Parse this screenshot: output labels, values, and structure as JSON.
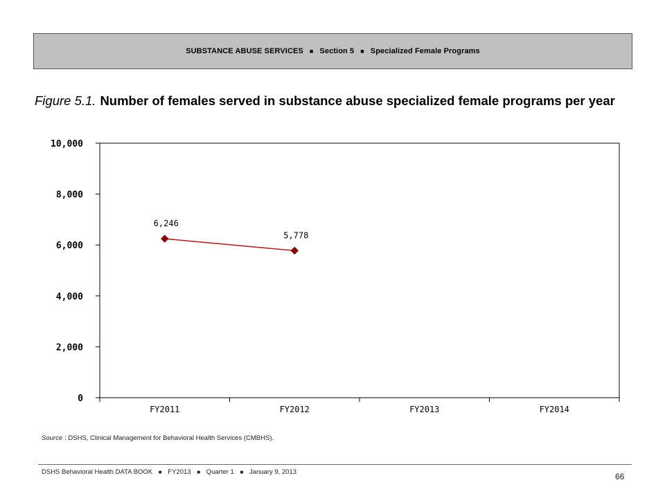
{
  "header": {
    "parts": [
      "SUBSTANCE ABUSE SERVICES",
      "Section 5",
      "Specialized Female Programs"
    ],
    "separator": "■"
  },
  "figure": {
    "label": "Figure 5.1.",
    "title": "Number of females served in substance abuse specialized female programs per year"
  },
  "chart_data": {
    "type": "line",
    "categories": [
      "FY2011",
      "FY2012",
      "FY2013",
      "FY2014"
    ],
    "series": [
      {
        "values": [
          6246,
          5778,
          null,
          null
        ]
      }
    ],
    "data_labels": [
      "6,246",
      "5,778"
    ],
    "ylim": [
      0,
      10000
    ],
    "yticks": [
      0,
      2000,
      4000,
      6000,
      8000,
      10000
    ],
    "ytick_labels": [
      "0",
      "2,000",
      "4,000",
      "6,000",
      "8,000",
      "10,000"
    ],
    "grid": false,
    "colors": {
      "line": "#a52a2a",
      "marker": "#8b0000",
      "axis": "#000000"
    }
  },
  "source": {
    "label": "Source",
    "text": ": DSHS, Clinical Management for Behavioral Health Services (CMBHS)."
  },
  "footer": {
    "parts": [
      "DSHS Behavioral Health DATA BOOK",
      "FY2013",
      "Quarter 1",
      "January  9, 2013"
    ],
    "separator": "■",
    "page_number": "66"
  }
}
